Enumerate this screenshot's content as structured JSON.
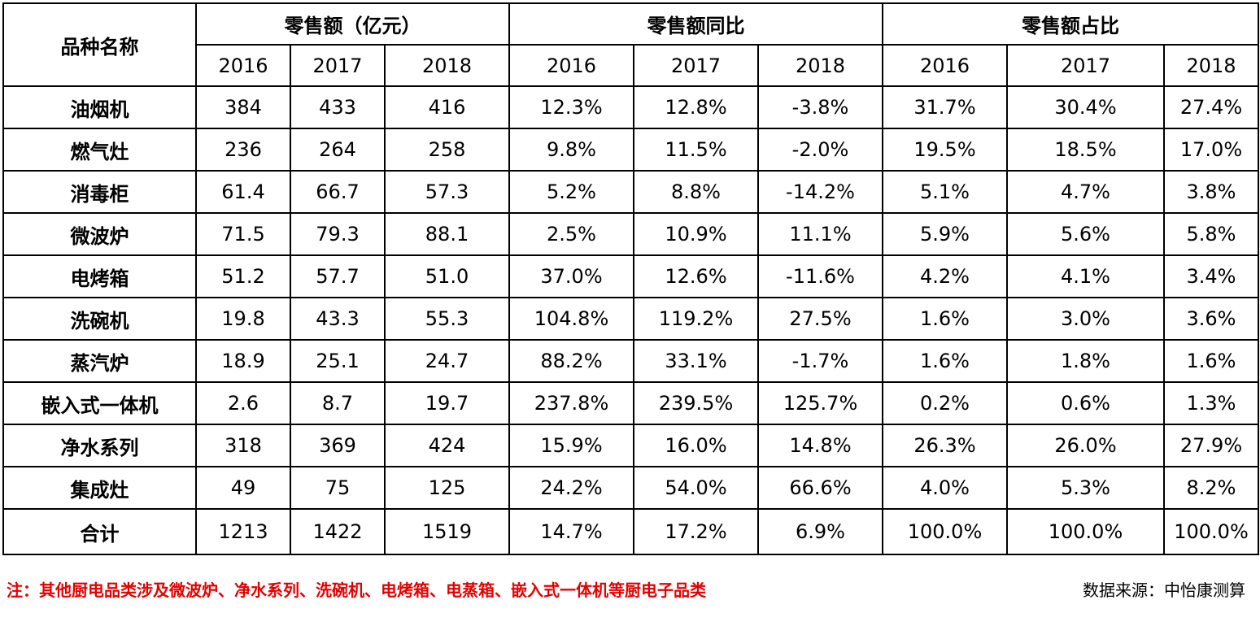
{
  "chart_data": {
    "type": "table",
    "header": {
      "name": "品种名称",
      "groups": [
        "零售额（亿元）",
        "零售额同比",
        "零售额占比"
      ],
      "years": [
        "2016",
        "2017",
        "2018"
      ]
    },
    "rows": [
      {
        "name": "油烟机",
        "cells": [
          "384",
          "433",
          "416",
          "12.3%",
          "12.8%",
          "-3.8%",
          "31.7%",
          "30.4%",
          "27.4%"
        ]
      },
      {
        "name": "燃气灶",
        "cells": [
          "236",
          "264",
          "258",
          "9.8%",
          "11.5%",
          "-2.0%",
          "19.5%",
          "18.5%",
          "17.0%"
        ]
      },
      {
        "name": "消毒柜",
        "cells": [
          "61.4",
          "66.7",
          "57.3",
          "5.2%",
          "8.8%",
          "-14.2%",
          "5.1%",
          "4.7%",
          "3.8%"
        ]
      },
      {
        "name": "微波炉",
        "cells": [
          "71.5",
          "79.3",
          "88.1",
          "2.5%",
          "10.9%",
          "11.1%",
          "5.9%",
          "5.6%",
          "5.8%"
        ]
      },
      {
        "name": "电烤箱",
        "cells": [
          "51.2",
          "57.7",
          "51.0",
          "37.0%",
          "12.6%",
          "-11.6%",
          "4.2%",
          "4.1%",
          "3.4%"
        ]
      },
      {
        "name": "洗碗机",
        "cells": [
          "19.8",
          "43.3",
          "55.3",
          "104.8%",
          "119.2%",
          "27.5%",
          "1.6%",
          "3.0%",
          "3.6%"
        ]
      },
      {
        "name": "蒸汽炉",
        "cells": [
          "18.9",
          "25.1",
          "24.7",
          "88.2%",
          "33.1%",
          "-1.7%",
          "1.6%",
          "1.8%",
          "1.6%"
        ]
      },
      {
        "name": "嵌入式一体机",
        "cells": [
          "2.6",
          "8.7",
          "19.7",
          "237.8%",
          "239.5%",
          "125.7%",
          "0.2%",
          "0.6%",
          "1.3%"
        ]
      },
      {
        "name": "净水系列",
        "cells": [
          "318",
          "369",
          "424",
          "15.9%",
          "16.0%",
          "14.8%",
          "26.3%",
          "26.0%",
          "27.9%"
        ]
      },
      {
        "name": "集成灶",
        "cells": [
          "49",
          "75",
          "125",
          "24.2%",
          "54.0%",
          "66.6%",
          "4.0%",
          "5.3%",
          "8.2%"
        ]
      },
      {
        "name": "合计",
        "cells": [
          "1213",
          "1422",
          "1519",
          "14.7%",
          "17.2%",
          "6.9%",
          "100.0%",
          "100.0%",
          "100.0%"
        ]
      }
    ],
    "note": "注：其他厨电品类涉及微波炉、净水系列、洗碗机、电烤箱、电蒸箱、嵌入式一体机等厨电子品类",
    "source": "数据来源：中怡康测算",
    "colors": {
      "note": "#e60000",
      "border": "#000000",
      "text": "#000000"
    }
  }
}
